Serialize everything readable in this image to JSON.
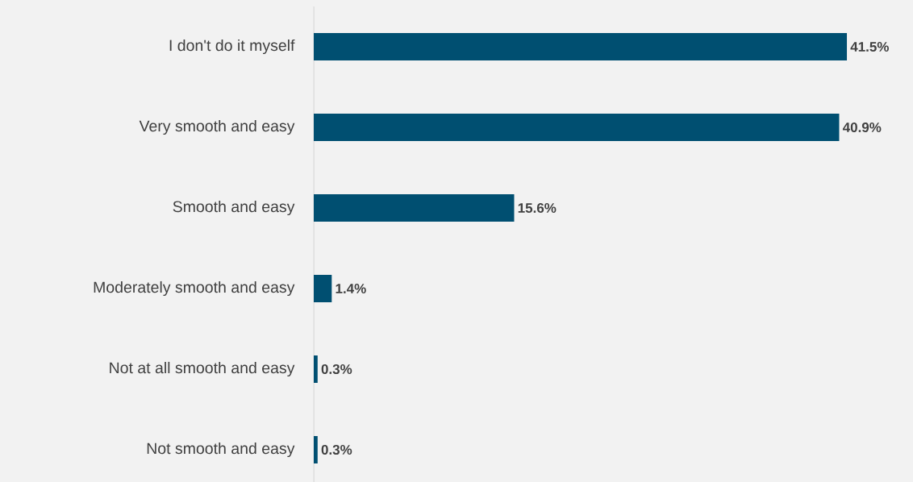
{
  "chart_data": {
    "type": "bar",
    "orientation": "horizontal",
    "categories": [
      "I don't do it myself",
      "Very smooth and easy",
      "Smooth and easy",
      "Moderately smooth and easy",
      "Not at all smooth and easy",
      "Not smooth and easy"
    ],
    "values": [
      41.5,
      40.9,
      15.6,
      1.4,
      0.3,
      0.3
    ],
    "value_labels": [
      "41.5%",
      "40.9%",
      "15.6%",
      "1.4%",
      "0.3%",
      "0.3%"
    ],
    "color": "#004f71"
  }
}
